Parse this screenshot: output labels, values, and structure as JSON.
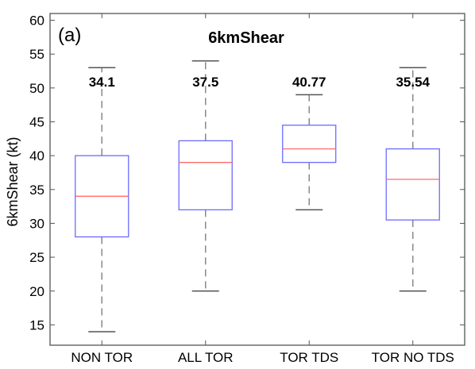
{
  "chart_data": {
    "type": "box",
    "panel_label": "(a)",
    "title": "6kmShear",
    "ylabel": "6kmShear (kt)",
    "xlabel": "",
    "ylim": [
      12,
      61
    ],
    "yticks": [
      15,
      20,
      25,
      30,
      35,
      40,
      45,
      50,
      55,
      60
    ],
    "grid": false,
    "colors": {
      "box": "#6b6bff",
      "median": "#ff6b6b",
      "whisker": "#888888"
    },
    "categories": [
      "NON TOR",
      "ALL TOR",
      "TOR TDS",
      "TOR NO TDS"
    ],
    "boxes": [
      {
        "label": "NON TOR",
        "min": 14,
        "q1": 28,
        "median": 34,
        "q3": 40,
        "max": 53,
        "mean_label": "34.1"
      },
      {
        "label": "ALL TOR",
        "min": 20,
        "q1": 32,
        "median": 39,
        "q3": 42.2,
        "max": 54,
        "mean_label": "37.5"
      },
      {
        "label": "TOR TDS",
        "min": 32,
        "q1": 39,
        "median": 41,
        "q3": 44.5,
        "max": 49,
        "mean_label": "40.77"
      },
      {
        "label": "TOR NO TDS",
        "min": 20,
        "q1": 30.5,
        "median": 36.5,
        "q3": 41,
        "max": 53,
        "mean_label": "35.54"
      }
    ]
  }
}
